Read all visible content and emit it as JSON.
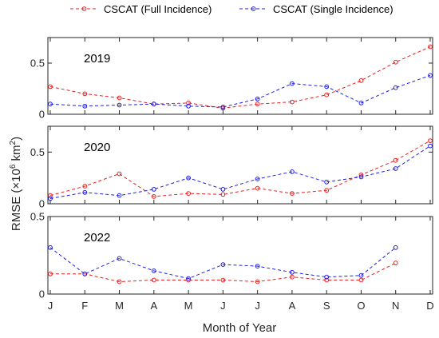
{
  "chart_data": {
    "type": "line",
    "categories": [
      "J",
      "F",
      "M",
      "A",
      "M",
      "J",
      "J",
      "A",
      "S",
      "O",
      "N",
      "D"
    ],
    "xlabel": "Month of Year",
    "ylabel_main": "RMSE (×10",
    "ylabel_sup": "6",
    "ylabel_mid": " km",
    "ylabel_sup2": "2",
    "ylabel_end": ")",
    "legend_position": "top",
    "legend": [
      {
        "name": "CSCAT (Full Incidence)",
        "color": "#e8211f"
      },
      {
        "name": "CSCAT (Single Incidence)",
        "color": "#1f1fe8"
      }
    ],
    "panels": [
      {
        "label": "2019",
        "ylim": [
          0,
          0.75
        ],
        "yticks": [
          "0",
          "0.5"
        ],
        "series": [
          {
            "name": "CSCAT (Full Incidence)",
            "values": [
              0.27,
              0.2,
              0.16,
              0.1,
              0.11,
              0.06,
              0.1,
              0.12,
              0.19,
              0.33,
              0.51,
              0.66
            ]
          },
          {
            "name": "CSCAT (Single Incidence)",
            "values": [
              0.1,
              0.08,
              0.09,
              0.1,
              0.08,
              0.07,
              0.15,
              0.3,
              0.27,
              0.11,
              0.26,
              0.38
            ]
          }
        ]
      },
      {
        "label": "2020",
        "ylim": [
          0,
          0.75
        ],
        "yticks": [
          "0",
          "0.5"
        ],
        "series": [
          {
            "name": "CSCAT (Full Incidence)",
            "values": [
              0.08,
              0.17,
              0.29,
              0.07,
              0.1,
              0.09,
              0.15,
              0.1,
              0.13,
              0.28,
              0.42,
              0.61
            ]
          },
          {
            "name": "CSCAT (Single Incidence)",
            "values": [
              0.05,
              0.11,
              0.08,
              0.14,
              0.25,
              0.14,
              0.24,
              0.31,
              0.21,
              0.26,
              0.34,
              0.56
            ]
          }
        ]
      },
      {
        "label": "2022",
        "ylim": [
          0,
          0.5
        ],
        "yticks": [
          "0",
          "0.5"
        ],
        "series": [
          {
            "name": "CSCAT (Full Incidence)",
            "values": [
              0.13,
              0.13,
              0.08,
              0.09,
              0.09,
              0.09,
              0.08,
              0.11,
              0.09,
              0.09,
              0.2,
              null
            ]
          },
          {
            "name": "CSCAT (Single Incidence)",
            "values": [
              0.3,
              0.13,
              0.23,
              0.15,
              0.1,
              0.19,
              0.18,
              0.14,
              0.11,
              0.12,
              0.3,
              null
            ]
          }
        ]
      }
    ]
  }
}
